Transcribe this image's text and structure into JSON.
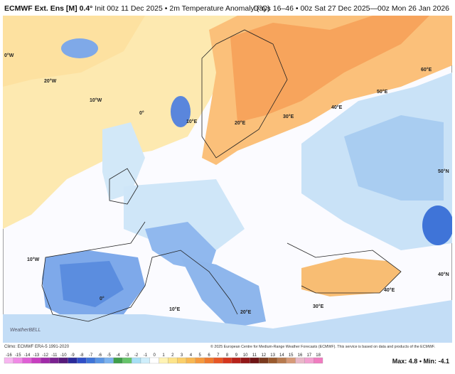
{
  "header": {
    "model": "ECMWF Ext. Ens [M] 0.4°",
    "init": "Init 00z 11 Dec 2025",
    "field": "2m Temperature Anomaly (°C)",
    "period": "Days 16–46 • 00z Sat 27 Dec 2025—00z Mon 26 Jan 2026"
  },
  "map": {
    "grid_labels": [
      "0°W",
      "20°W",
      "10°W",
      "0°",
      "10°E",
      "20°E",
      "30°E",
      "40°E",
      "50°E",
      "60°E",
      "50°N",
      "40°N",
      "10°W",
      "0°",
      "10°E",
      "20°E",
      "30°E",
      "40°E"
    ],
    "logo": "WeatherBELL"
  },
  "footer": {
    "climo": "Climo: ECMWF ERA-5 1991-2020",
    "copyright": "© 2025 European Centre for Medium-Range Weather Forecasts (ECMWF). This service is based on data and products of the ECMWF.",
    "max_label": "Max:",
    "max": "4.8",
    "min_label": "Min:",
    "min": "-4.1"
  },
  "scale": {
    "labels": [
      "-16",
      "-15",
      "-14",
      "-13",
      "-12",
      "-11",
      "-10",
      "-9",
      "-8",
      "-7",
      "-6",
      "-5",
      "-4",
      "-3",
      "-2",
      "-1",
      "0",
      "1",
      "2",
      "3",
      "4",
      "5",
      "6",
      "7",
      "8",
      "9",
      "10",
      "11",
      "12",
      "13",
      "14",
      "15",
      "16",
      "17",
      "18"
    ]
  }
}
